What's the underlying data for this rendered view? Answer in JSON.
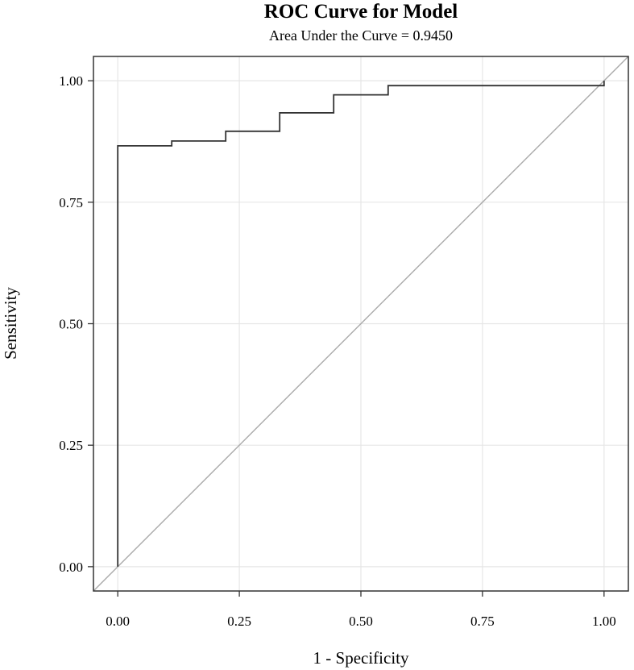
{
  "chart_data": {
    "type": "line",
    "title": "ROC Curve for Model",
    "subtitle": "Area Under the Curve = 0.9450",
    "xlabel": "1 - Specificity",
    "ylabel": "Sensitivity",
    "xlim": [
      -0.05,
      1.05
    ],
    "ylim": [
      -0.05,
      1.05
    ],
    "xticks": [
      0.0,
      0.25,
      0.5,
      0.75,
      1.0
    ],
    "xtick_labels": [
      "0.00",
      "0.25",
      "0.50",
      "0.75",
      "1.00"
    ],
    "yticks": [
      0.0,
      0.25,
      0.5,
      0.75,
      1.0
    ],
    "ytick_labels": [
      "0.00",
      "0.25",
      "0.50",
      "0.75",
      "1.00"
    ],
    "grid": true,
    "series": [
      {
        "style": "step",
        "color": "#333333",
        "points": [
          [
            0.0,
            0.0
          ],
          [
            0.0,
            0.866
          ],
          [
            0.111,
            0.866
          ],
          [
            0.111,
            0.876
          ],
          [
            0.222,
            0.876
          ],
          [
            0.222,
            0.896
          ],
          [
            0.333,
            0.896
          ],
          [
            0.333,
            0.934
          ],
          [
            0.444,
            0.934
          ],
          [
            0.444,
            0.971
          ],
          [
            0.556,
            0.971
          ],
          [
            0.556,
            0.99
          ],
          [
            1.0,
            0.99
          ],
          [
            1.0,
            1.0
          ]
        ]
      },
      {
        "style": "reference",
        "color": "#aaaaaa",
        "points": [
          [
            -0.05,
            -0.05
          ],
          [
            1.05,
            1.05
          ]
        ]
      }
    ],
    "colors": {
      "grid": "#e6e6e6",
      "frame": "#333333"
    }
  }
}
